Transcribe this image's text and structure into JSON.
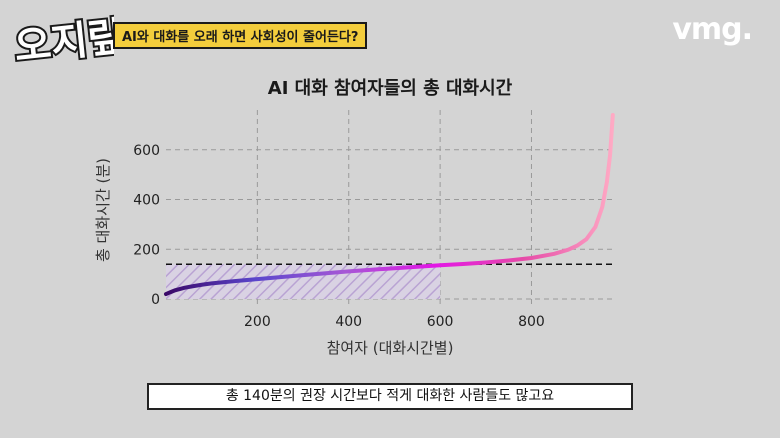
{
  "header": {
    "logo_text": "오지랖",
    "topic": "AI와 대화를 오래 하면 사회성이 줄어든다?",
    "brand": "vmg."
  },
  "caption": "총 140분의 권장 시간보다 적게 대화한 사람들도 많고요",
  "chart_data": {
    "type": "line",
    "title": "AI 대화 참여자들의 총 대화시간",
    "xlabel": "참여자 (대화시간별)",
    "ylabel": "총 대화시간 (분)",
    "xlim": [
      0,
      985
    ],
    "ylim": [
      -20,
      760
    ],
    "xticks": [
      200,
      400,
      600,
      800
    ],
    "yticks": [
      0,
      200,
      400,
      600
    ],
    "grid": true,
    "reference_line": {
      "y": 140,
      "style": "dashed",
      "color": "#111111"
    },
    "shaded_region": {
      "x": [
        0,
        600
      ],
      "y": [
        0,
        140
      ],
      "pattern": "diagonal-hatch",
      "color": "#b9a3d3"
    },
    "series": [
      {
        "x": [
          0,
          10,
          20,
          40,
          60,
          80,
          100,
          150,
          200,
          250,
          300,
          350,
          400,
          450,
          500,
          550,
          600,
          650,
          700,
          750,
          800,
          850,
          880,
          900,
          920,
          940,
          955,
          965,
          972,
          978
        ],
        "y": [
          20,
          28,
          35,
          45,
          52,
          58,
          63,
          72,
          80,
          88,
          96,
          104,
          111,
          118,
          124,
          130,
          136,
          141,
          147,
          155,
          165,
          182,
          198,
          215,
          240,
          290,
          370,
          470,
          580,
          740
        ]
      }
    ],
    "gradient_colors": [
      "#3a0868",
      "#5b46cc",
      "#a658d6",
      "#e316e6",
      "#e64ba8",
      "#ffaac4"
    ]
  }
}
